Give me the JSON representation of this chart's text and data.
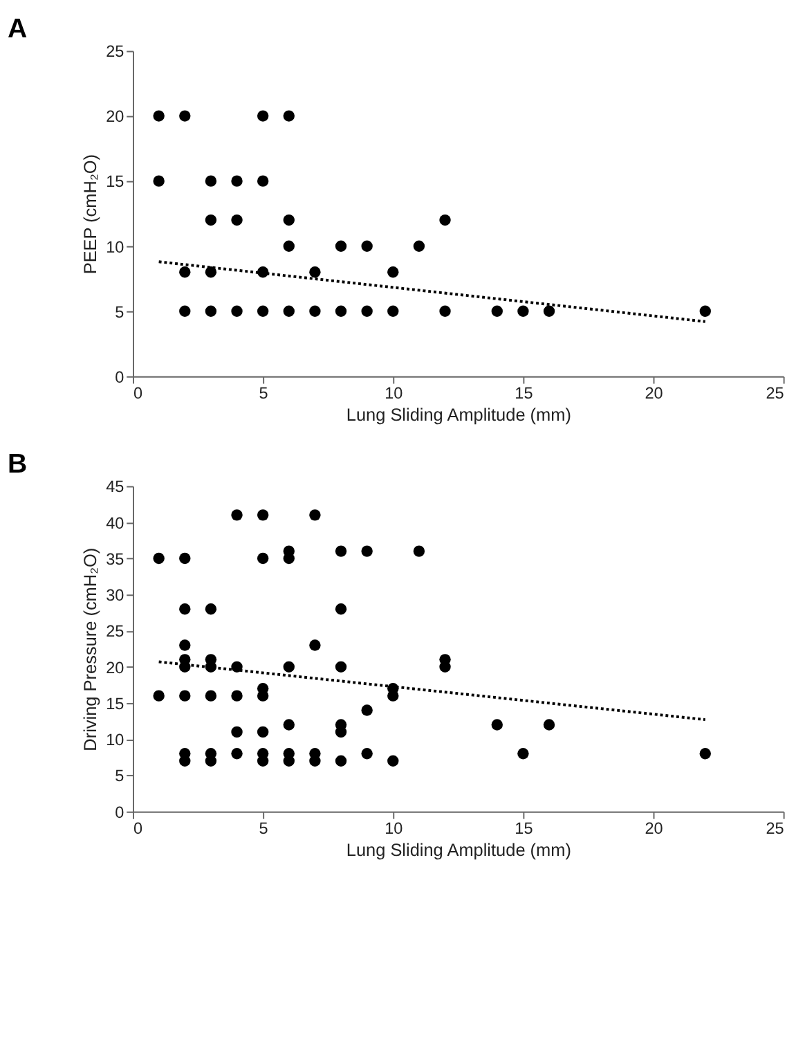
{
  "chart_data": [
    {
      "type": "scatter",
      "title": "A",
      "xlabel": "Lung Sliding Amplitude (mm)",
      "ylabel": "PEEP (cmH₂O)",
      "xlim": [
        0,
        25
      ],
      "xticks": [
        0,
        5,
        10,
        15,
        20,
        25
      ],
      "ylim": [
        0,
        25
      ],
      "yticks": [
        0,
        5,
        10,
        15,
        20,
        25
      ],
      "grid": false,
      "series": [
        {
          "color": "#000000",
          "marker": "circle",
          "x": [
            1,
            2,
            5,
            6,
            1,
            3,
            4,
            5,
            3,
            4,
            6,
            12,
            6,
            8,
            9,
            11,
            2,
            3,
            5,
            7,
            10,
            2,
            3,
            4,
            5,
            6,
            7,
            8,
            9,
            10,
            12,
            14,
            15,
            16,
            22
          ],
          "values": [
            20,
            20,
            20,
            20,
            15,
            15,
            15,
            15,
            12,
            12,
            12,
            12,
            10,
            10,
            10,
            10,
            8,
            8,
            8,
            8,
            8,
            5,
            5,
            5,
            5,
            5,
            5,
            5,
            5,
            5,
            5,
            5,
            5,
            5,
            5
          ]
        },
        {
          "type": "line",
          "color": "#000000",
          "line_style": "dotted",
          "x": [
            1,
            22
          ],
          "values": [
            8.8,
            4.2
          ]
        }
      ]
    },
    {
      "type": "scatter",
      "title": "B",
      "xlabel": "Lung Sliding Amplitude (mm)",
      "ylabel": "Driving Pressure (cmH₂O)",
      "xlim": [
        0,
        25
      ],
      "xticks": [
        0,
        5,
        10,
        15,
        20,
        25
      ],
      "ylim": [
        0,
        45
      ],
      "yticks": [
        0,
        5,
        10,
        15,
        20,
        25,
        30,
        35,
        40,
        45
      ],
      "grid": false,
      "series": [
        {
          "color": "#000000",
          "marker": "circle",
          "x": [
            4,
            5,
            7,
            6,
            8,
            9,
            11,
            1,
            2,
            5,
            6,
            2,
            3,
            8,
            2,
            7,
            2,
            3,
            12,
            2,
            3,
            4,
            6,
            8,
            12,
            5,
            10,
            1,
            2,
            3,
            4,
            5,
            10,
            9,
            6,
            8,
            14,
            16,
            4,
            5,
            8,
            2,
            3,
            4,
            5,
            6,
            7,
            9,
            15,
            22,
            2,
            3,
            5,
            6,
            7,
            8,
            10
          ],
          "values": [
            41,
            41,
            41,
            36,
            36,
            36,
            36,
            35,
            35,
            35,
            35,
            28,
            28,
            28,
            23,
            23,
            21,
            21,
            21,
            20,
            20,
            20,
            20,
            20,
            20,
            17,
            17,
            16,
            16,
            16,
            16,
            16,
            16,
            14,
            12,
            12,
            12,
            12,
            11,
            11,
            11,
            8,
            8,
            8,
            8,
            8,
            8,
            8,
            8,
            8,
            7,
            7,
            7,
            7,
            7,
            7,
            7
          ]
        },
        {
          "type": "line",
          "color": "#000000",
          "line_style": "dotted",
          "x": [
            1,
            22
          ],
          "values": [
            20.7,
            12.7
          ]
        }
      ]
    }
  ]
}
